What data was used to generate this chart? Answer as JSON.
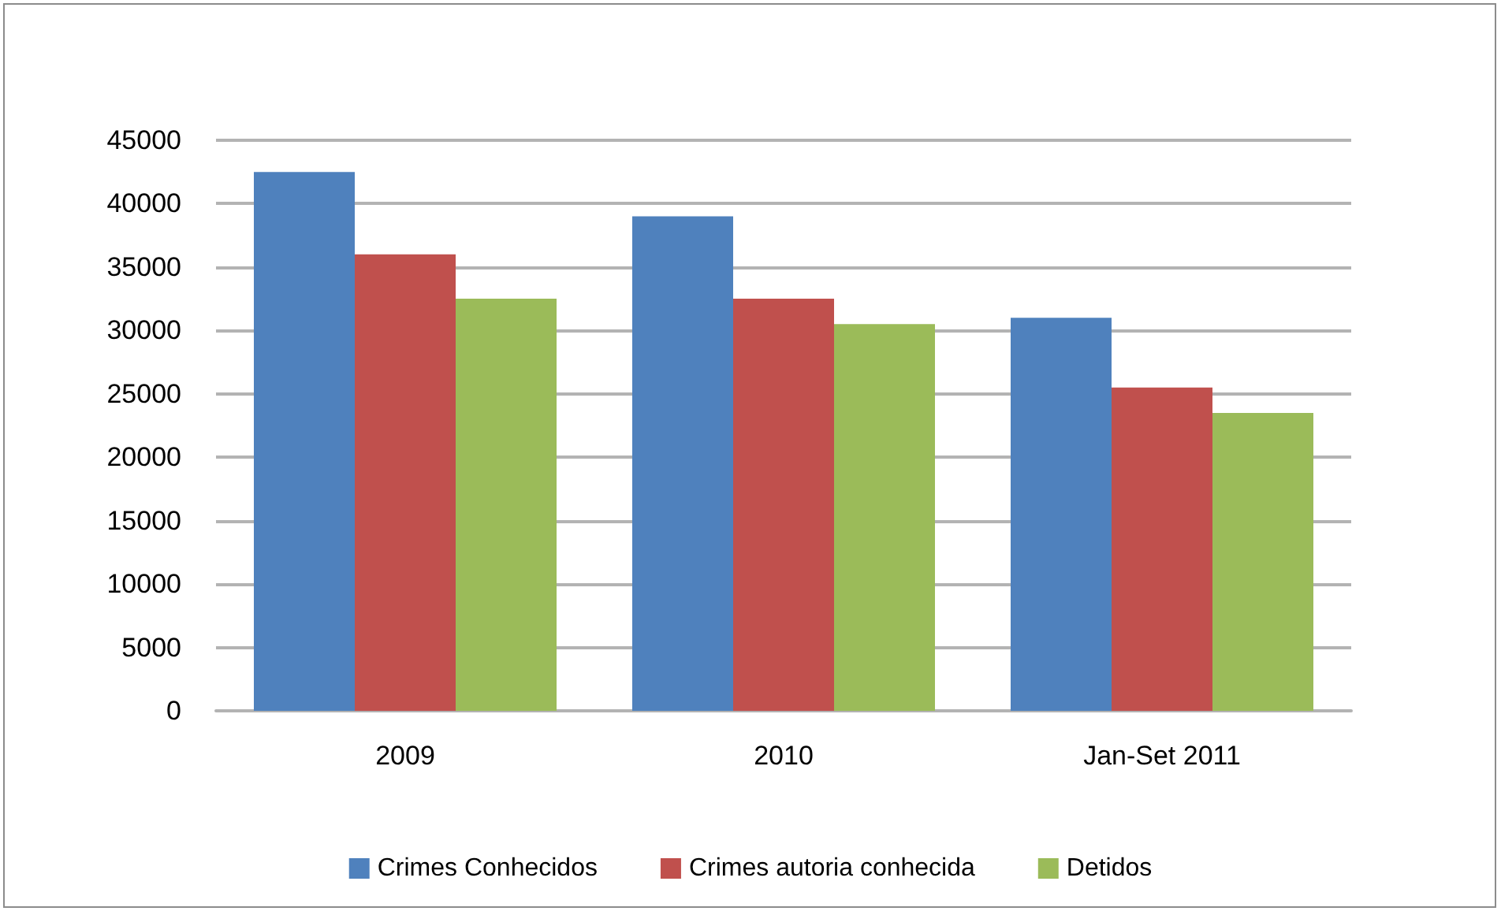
{
  "chart_data": {
    "type": "bar",
    "categories": [
      "2009",
      "2010",
      "Jan-Set 2011"
    ],
    "series": [
      {
        "name": "Crimes Conhecidos",
        "color": "#4f81bd",
        "values": [
          42500,
          39000,
          31000
        ]
      },
      {
        "name": "Crimes autoria conhecida",
        "color": "#c0504d",
        "values": [
          36000,
          32500,
          25500
        ]
      },
      {
        "name": "Detidos",
        "color": "#9bbb59",
        "values": [
          32500,
          30500,
          23500
        ]
      }
    ],
    "ylim": [
      0,
      45000
    ],
    "yticks": [
      0,
      5000,
      10000,
      15000,
      20000,
      25000,
      30000,
      35000,
      40000,
      45000
    ],
    "grid": "y",
    "legend": "bottom"
  }
}
